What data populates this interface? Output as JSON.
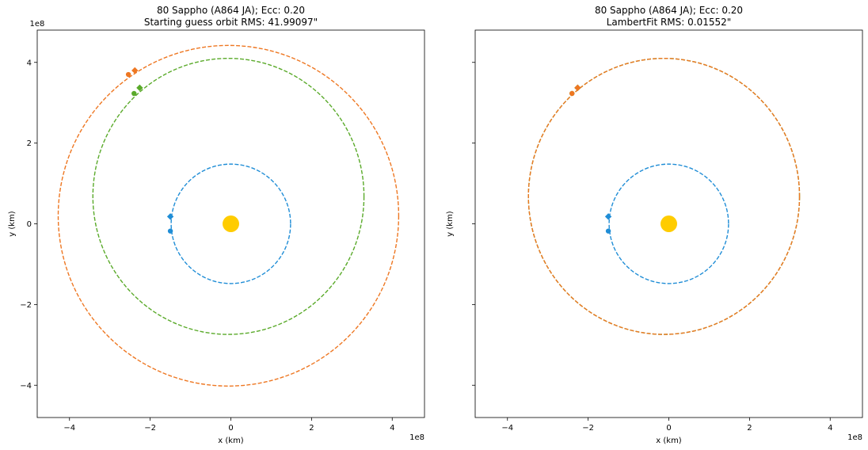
{
  "chart_data": [
    {
      "type": "scatter",
      "title": "80 Sappho (A864 JA); Ecc: 0.20",
      "subtitle": "Starting guess orbit RMS: 41.99097\"",
      "xlabel": "x (km)",
      "ylabel": "y (km)",
      "xlim": [
        -4.8,
        4.8
      ],
      "ylim": [
        -4.8,
        4.8
      ],
      "x_ticks": [
        -4,
        -2,
        0,
        2,
        4
      ],
      "y_ticks": [
        -4,
        -2,
        0,
        2,
        4
      ],
      "x_tick_labels": [
        "−4",
        "−2",
        "0",
        "2",
        "4"
      ],
      "y_tick_labels": [
        "−4",
        "−2",
        "0",
        "2",
        "4"
      ],
      "x_exponent": "1e8",
      "y_exponent": "1e8",
      "grid": false,
      "sun": {
        "x": 0,
        "y": 0,
        "color": "#FFCC00"
      },
      "series": [
        {
          "color": "#1f8dd6",
          "orbit": {
            "cx": 0.0,
            "cy": 0.0,
            "rx": 1.48,
            "ry": 1.48
          },
          "markers": {
            "diamond": [
              -1.5,
              0.18
            ],
            "dot": [
              -1.5,
              -0.18
            ]
          }
        },
        {
          "color": "#5aaa2a",
          "orbit": {
            "cx": -0.06,
            "cy": 0.68,
            "rx": 3.36,
            "ry": 3.42
          },
          "markers": {
            "diamond": [
              -2.26,
              3.37
            ],
            "dot": [
              -2.4,
              3.23
            ]
          }
        },
        {
          "color": "#ee7722",
          "orbit": {
            "cx": -0.06,
            "cy": 0.2,
            "rx": 4.22,
            "ry": 4.22
          },
          "markers": {
            "diamond": [
              -2.38,
              3.8
            ],
            "dot": [
              -2.54,
              3.7
            ]
          }
        }
      ]
    },
    {
      "type": "scatter",
      "title": "80 Sappho (A864 JA); Ecc: 0.20",
      "subtitle": "LambertFit RMS: 0.01552\"",
      "xlabel": "x (km)",
      "ylabel": "y (km)",
      "xlim": [
        -4.8,
        4.8
      ],
      "ylim": [
        -4.8,
        4.8
      ],
      "x_ticks": [
        -4,
        -2,
        0,
        2,
        4
      ],
      "y_ticks": [
        -4,
        -2,
        0,
        2,
        4
      ],
      "x_tick_labels": [
        "−4",
        "−2",
        "0",
        "2",
        "4"
      ],
      "y_tick_labels": [
        "",
        "",
        "",
        "",
        ""
      ],
      "x_exponent": "1e8",
      "y_exponent": "",
      "grid": false,
      "sun": {
        "x": 0,
        "y": 0,
        "color": "#FFCC00"
      },
      "series": [
        {
          "color": "#1f8dd6",
          "orbit": {
            "cx": 0.0,
            "cy": 0.0,
            "rx": 1.48,
            "ry": 1.48
          },
          "markers": {
            "diamond": [
              -1.5,
              0.18
            ],
            "dot": [
              -1.5,
              -0.18
            ]
          }
        },
        {
          "color": "#5aaa2a",
          "orbit": {
            "cx": -0.12,
            "cy": 0.68,
            "rx": 3.36,
            "ry": 3.42
          },
          "markers": {
            "diamond": [
              -2.26,
              3.37
            ],
            "dot": [
              -2.4,
              3.23
            ]
          }
        },
        {
          "color": "#ee7722",
          "orbit": {
            "cx": -0.12,
            "cy": 0.68,
            "rx": 3.36,
            "ry": 3.42
          },
          "markers": {
            "diamond": [
              -2.26,
              3.37
            ],
            "dot": [
              -2.4,
              3.23
            ]
          }
        }
      ]
    }
  ]
}
